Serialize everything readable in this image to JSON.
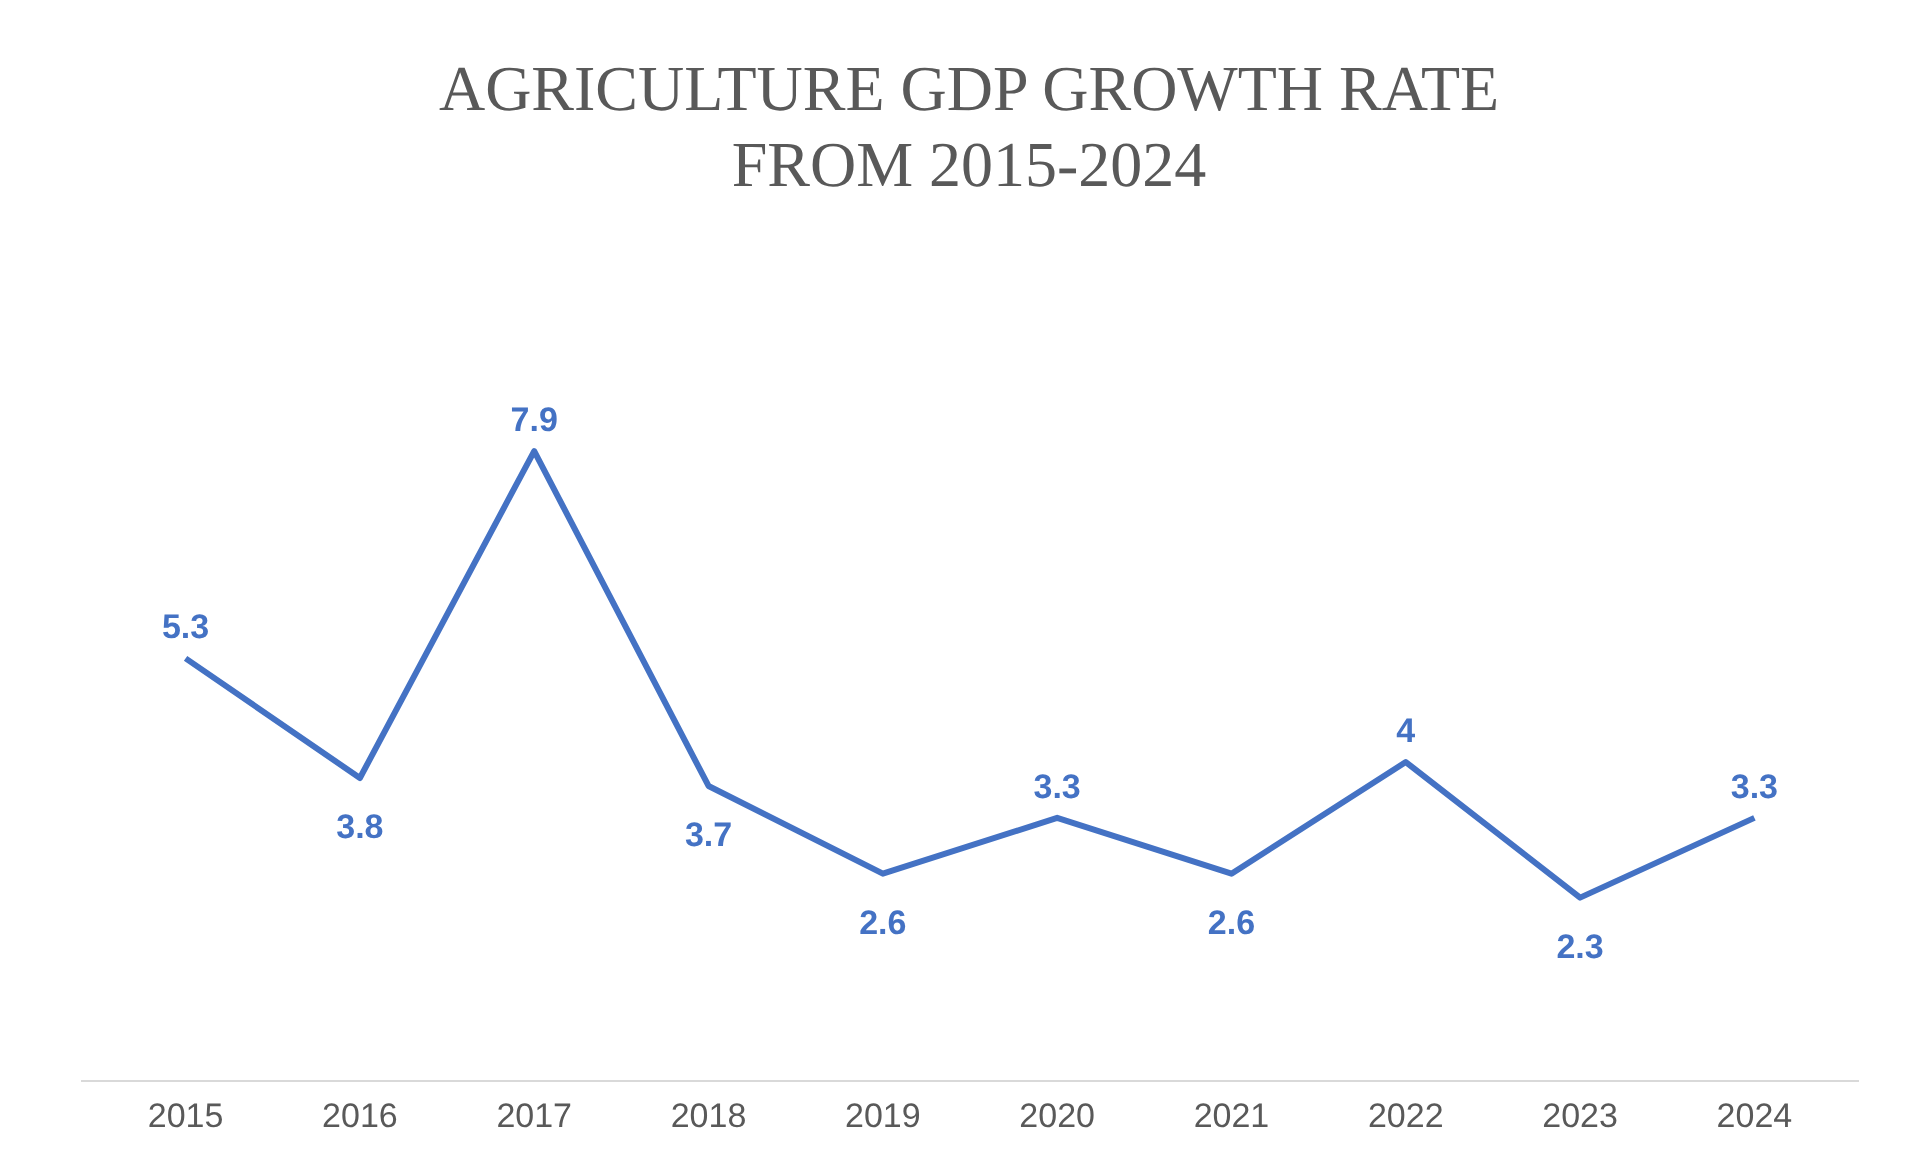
{
  "chart_data": {
    "type": "line",
    "title": "AGRICULTURE GDP GROWTH RATE\nFROM 2015-2024",
    "categories": [
      "2015",
      "2016",
      "2017",
      "2018",
      "2019",
      "2020",
      "2021",
      "2022",
      "2023",
      "2024"
    ],
    "series": [
      {
        "color": "#4472c4",
        "values": [
          5.3,
          3.8,
          7.9,
          3.7,
          2.6,
          3.3,
          2.6,
          4,
          2.3,
          3.3
        ]
      }
    ],
    "tick_labels": "x",
    "data_labels": true,
    "grid": false,
    "marker": "none",
    "line_style": "solid"
  }
}
